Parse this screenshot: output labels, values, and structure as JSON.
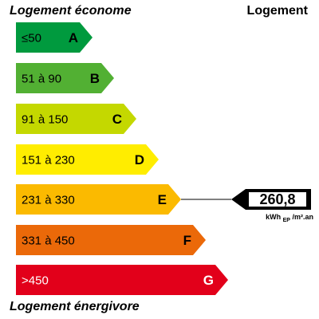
{
  "labels": {
    "top_left": "Logement économe",
    "top_right": "Logement",
    "bottom_left": "Logement énergivore"
  },
  "classes": [
    {
      "letter": "A",
      "range": "≤50",
      "color": "#009a3e",
      "text_color": "#000000"
    },
    {
      "letter": "B",
      "range": "51 à 90",
      "color": "#52b033",
      "text_color": "#000000"
    },
    {
      "letter": "C",
      "range": "91 à 150",
      "color": "#c4d800",
      "text_color": "#000000"
    },
    {
      "letter": "D",
      "range": "151 à 230",
      "color": "#ffed00",
      "text_color": "#000000"
    },
    {
      "letter": "E",
      "range": "231 à 330",
      "color": "#fbba00",
      "text_color": "#000000"
    },
    {
      "letter": "F",
      "range": "331 à 450",
      "color": "#eb6909",
      "text_color": "#000000"
    },
    {
      "letter": "G",
      "range": ">450",
      "color": "#e2001a",
      "text_color": "#ffffff"
    }
  ],
  "indicator": {
    "value": "260,8",
    "unit_main": "kWh",
    "unit_sub": "EP",
    "unit_tail": "/m².an",
    "class": "E"
  }
}
